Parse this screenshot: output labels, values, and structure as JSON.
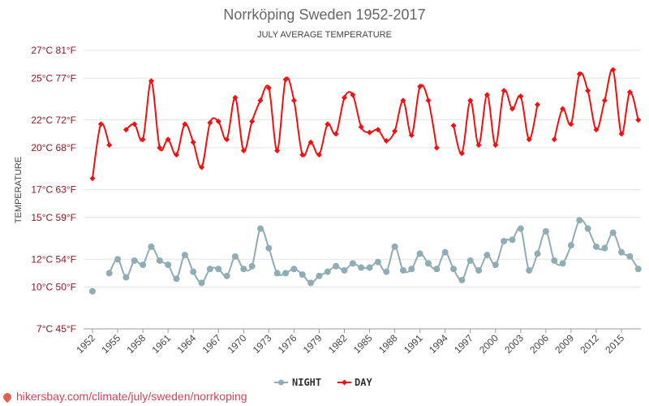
{
  "chart_data": {
    "type": "line",
    "title": "Norrköping Sweden 1952-2017",
    "subtitle": "JULY AVERAGE TEMPERATURE",
    "ylabel": "TEMPERATURE",
    "ylim": [
      7,
      27
    ],
    "y_ticks": [
      {
        "value": 7,
        "label": "7°C 45°F"
      },
      {
        "value": 10,
        "label": "10°C 50°F"
      },
      {
        "value": 12,
        "label": "12°C 54°F"
      },
      {
        "value": 15,
        "label": "15°C 59°F"
      },
      {
        "value": 17,
        "label": "17°C 63°F"
      },
      {
        "value": 20,
        "label": "20°C 68°F"
      },
      {
        "value": 22,
        "label": "22°C 72°F"
      },
      {
        "value": 25,
        "label": "25°C 77°F"
      },
      {
        "value": 27,
        "label": "27°C 81°F"
      }
    ],
    "x_ticks": [
      "1952",
      "1955",
      "1958",
      "1961",
      "1964",
      "1967",
      "1970",
      "1973",
      "1976",
      "1979",
      "1982",
      "1985",
      "1988",
      "1991",
      "1994",
      "1997",
      "2000",
      "2003",
      "2006",
      "2009",
      "2012",
      "2015"
    ],
    "x": [
      1952,
      1953,
      1954,
      1955,
      1956,
      1957,
      1958,
      1959,
      1960,
      1961,
      1962,
      1963,
      1964,
      1965,
      1966,
      1967,
      1968,
      1969,
      1970,
      1971,
      1972,
      1973,
      1974,
      1975,
      1976,
      1977,
      1978,
      1979,
      1980,
      1981,
      1982,
      1983,
      1984,
      1985,
      1986,
      1987,
      1988,
      1989,
      1990,
      1991,
      1992,
      1993,
      1994,
      1995,
      1996,
      1997,
      1998,
      1999,
      2000,
      2001,
      2002,
      2003,
      2004,
      2005,
      2006,
      2007,
      2008,
      2009,
      2010,
      2011,
      2012,
      2013,
      2014,
      2015,
      2016,
      2017
    ],
    "series": [
      {
        "name": "NIGHT",
        "color": "#8fadb5",
        "values": [
          9.7,
          null,
          11.0,
          12.0,
          10.7,
          11.9,
          11.6,
          12.9,
          11.9,
          11.6,
          10.6,
          12.3,
          11.1,
          10.3,
          11.3,
          11.3,
          10.8,
          12.2,
          11.3,
          11.5,
          14.2,
          12.8,
          11.0,
          11.0,
          11.3,
          10.9,
          10.3,
          10.8,
          11.1,
          11.5,
          11.2,
          11.7,
          11.4,
          11.4,
          11.8,
          11.1,
          12.9,
          11.2,
          11.3,
          12.4,
          11.7,
          11.3,
          12.5,
          11.3,
          10.5,
          11.9,
          11.2,
          12.3,
          11.6,
          13.3,
          13.4,
          14.2,
          11.2,
          12.4,
          14.0,
          11.9,
          11.7,
          13.0,
          14.8,
          14.2,
          12.9,
          12.8,
          13.9,
          12.5,
          12.2,
          11.3
        ]
      },
      {
        "name": "DAY",
        "color": "#ee1111",
        "values": [
          17.8,
          21.7,
          20.2,
          null,
          21.3,
          21.7,
          20.6,
          24.8,
          20.0,
          20.6,
          19.5,
          21.7,
          20.4,
          18.6,
          21.8,
          21.9,
          20.6,
          23.6,
          19.8,
          21.9,
          23.4,
          24.3,
          19.8,
          24.9,
          23.4,
          19.5,
          20.4,
          19.5,
          21.7,
          21.0,
          23.6,
          23.8,
          21.5,
          21.1,
          21.3,
          20.5,
          21.2,
          23.4,
          20.9,
          24.4,
          23.4,
          20.0,
          null,
          21.6,
          19.6,
          23.4,
          20.2,
          23.8,
          20.2,
          24.1,
          22.8,
          23.7,
          20.6,
          23.1,
          null,
          20.6,
          22.8,
          21.7,
          25.3,
          24.1,
          21.3,
          23.4,
          25.6,
          21.0,
          24.0,
          22.0
        ]
      }
    ],
    "legend": {
      "placement": "bottom-center",
      "items": [
        "NIGHT",
        "DAY"
      ]
    },
    "grid": true
  },
  "footer": {
    "text": "hikersbay.com/climate/july/sweden/norrkoping"
  }
}
